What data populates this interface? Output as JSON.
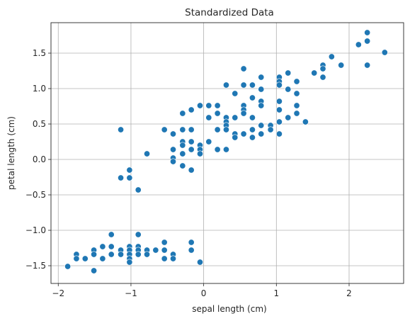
{
  "chart_data": {
    "type": "scatter",
    "title": "Standardized Data",
    "xlabel": "sepal length (cm)",
    "ylabel": "petal length (cm)",
    "xlim": [
      -2.1,
      2.75
    ],
    "ylim": [
      -1.75,
      1.93
    ],
    "xticks": [
      -2,
      -1,
      0,
      1,
      2
    ],
    "xtick_labels": [
      "−2",
      "−1",
      "0",
      "1",
      "2"
    ],
    "yticks": [
      -1.5,
      -1.0,
      -0.5,
      0.0,
      0.5,
      1.0,
      1.5
    ],
    "ytick_labels": [
      "−1.5",
      "−1.0",
      "−0.5",
      "0.0",
      "0.5",
      "1.0",
      "1.5"
    ],
    "grid": true,
    "marker_color": "#1f77b4",
    "points": [
      [
        -1.87,
        -1.51
      ],
      [
        -1.75,
        -1.34
      ],
      [
        -1.75,
        -1.4
      ],
      [
        -1.63,
        -1.4
      ],
      [
        -1.51,
        -1.28
      ],
      [
        -1.51,
        -1.34
      ],
      [
        -1.51,
        -1.57
      ],
      [
        -1.39,
        -1.23
      ],
      [
        -1.39,
        -1.4
      ],
      [
        -1.27,
        -1.06
      ],
      [
        -1.27,
        -1.23
      ],
      [
        -1.27,
        -1.34
      ],
      [
        -1.14,
        -1.28
      ],
      [
        -1.14,
        -1.34
      ],
      [
        -1.02,
        -1.23
      ],
      [
        -1.02,
        -1.28
      ],
      [
        -1.02,
        -1.34
      ],
      [
        -1.02,
        -1.4
      ],
      [
        -1.02,
        -1.45
      ],
      [
        -0.9,
        -1.06
      ],
      [
        -0.9,
        -1.23
      ],
      [
        -0.9,
        -1.28
      ],
      [
        -0.9,
        -1.34
      ],
      [
        -0.78,
        -1.28
      ],
      [
        -0.78,
        -1.34
      ],
      [
        -0.66,
        -1.28
      ],
      [
        -0.54,
        -1.17
      ],
      [
        -0.54,
        -1.28
      ],
      [
        -0.54,
        -1.4
      ],
      [
        -0.42,
        -1.34
      ],
      [
        -0.42,
        -1.4
      ],
      [
        -0.17,
        -1.17
      ],
      [
        -0.17,
        -1.28
      ],
      [
        -0.05,
        -1.45
      ],
      [
        -1.14,
        0.42
      ],
      [
        -1.14,
        -0.26
      ],
      [
        -1.02,
        -0.15
      ],
      [
        -1.02,
        -0.26
      ],
      [
        -0.9,
        -0.43
      ],
      [
        -0.78,
        0.08
      ],
      [
        -0.54,
        0.42
      ],
      [
        -0.42,
        0.36
      ],
      [
        -0.42,
        0.14
      ],
      [
        -0.42,
        0.02
      ],
      [
        -0.42,
        -0.03
      ],
      [
        -0.29,
        0.65
      ],
      [
        -0.29,
        0.42
      ],
      [
        -0.29,
        0.25
      ],
      [
        -0.29,
        0.2
      ],
      [
        -0.29,
        0.08
      ],
      [
        -0.29,
        -0.09
      ],
      [
        -0.17,
        0.7
      ],
      [
        -0.17,
        0.42
      ],
      [
        -0.17,
        0.25
      ],
      [
        -0.17,
        0.14
      ],
      [
        -0.17,
        -0.15
      ],
      [
        -0.05,
        0.76
      ],
      [
        -0.05,
        0.2
      ],
      [
        -0.05,
        0.14
      ],
      [
        -0.05,
        0.08
      ],
      [
        0.07,
        0.76
      ],
      [
        0.07,
        0.59
      ],
      [
        0.07,
        0.25
      ],
      [
        0.19,
        0.76
      ],
      [
        0.19,
        0.65
      ],
      [
        0.19,
        0.42
      ],
      [
        0.19,
        0.14
      ],
      [
        0.31,
        1.05
      ],
      [
        0.31,
        0.59
      ],
      [
        0.31,
        0.53
      ],
      [
        0.31,
        0.48
      ],
      [
        0.31,
        0.42
      ],
      [
        0.31,
        0.14
      ],
      [
        0.43,
        0.93
      ],
      [
        0.43,
        0.59
      ],
      [
        0.43,
        0.36
      ],
      [
        0.43,
        0.31
      ],
      [
        0.55,
        1.28
      ],
      [
        0.55,
        1.05
      ],
      [
        0.55,
        0.76
      ],
      [
        0.55,
        0.7
      ],
      [
        0.55,
        0.65
      ],
      [
        0.55,
        0.36
      ],
      [
        0.67,
        1.05
      ],
      [
        0.67,
        0.87
      ],
      [
        0.67,
        0.59
      ],
      [
        0.67,
        0.42
      ],
      [
        0.67,
        0.31
      ],
      [
        0.79,
        1.16
      ],
      [
        0.79,
        0.99
      ],
      [
        0.79,
        0.82
      ],
      [
        0.79,
        0.76
      ],
      [
        0.79,
        0.48
      ],
      [
        0.79,
        0.36
      ],
      [
        0.92,
        0.48
      ],
      [
        0.92,
        0.42
      ],
      [
        1.04,
        1.16
      ],
      [
        1.04,
        1.1
      ],
      [
        1.04,
        1.05
      ],
      [
        1.04,
        0.82
      ],
      [
        1.04,
        0.7
      ],
      [
        1.04,
        0.53
      ],
      [
        1.04,
        0.36
      ],
      [
        1.16,
        1.22
      ],
      [
        1.16,
        0.99
      ],
      [
        1.16,
        0.59
      ],
      [
        1.28,
        1.1
      ],
      [
        1.28,
        0.93
      ],
      [
        1.28,
        0.76
      ],
      [
        1.28,
        0.65
      ],
      [
        1.4,
        0.53
      ],
      [
        1.52,
        1.22
      ],
      [
        1.64,
        1.33
      ],
      [
        1.64,
        1.28
      ],
      [
        1.64,
        1.16
      ],
      [
        1.76,
        1.45
      ],
      [
        1.89,
        1.33
      ],
      [
        2.13,
        1.62
      ],
      [
        2.25,
        1.79
      ],
      [
        2.25,
        1.67
      ],
      [
        2.25,
        1.33
      ],
      [
        2.49,
        1.51
      ]
    ]
  }
}
